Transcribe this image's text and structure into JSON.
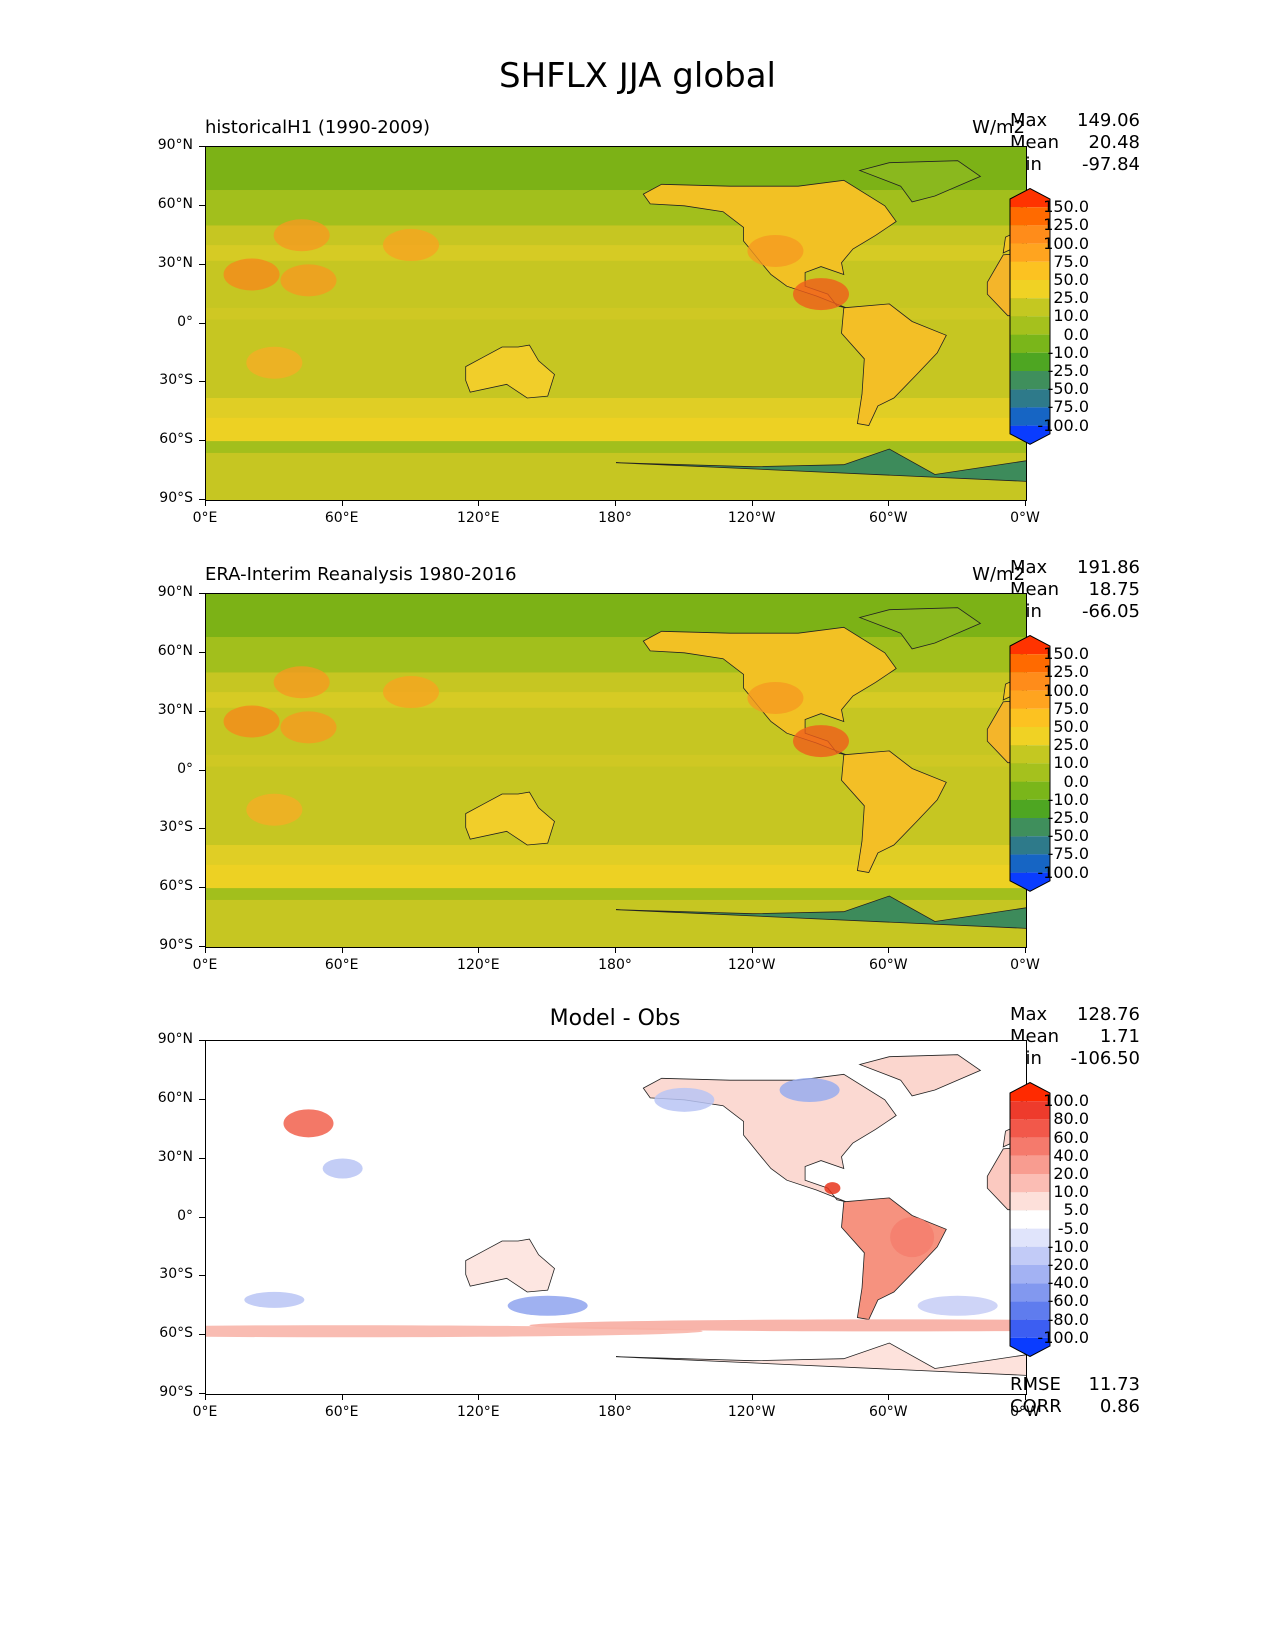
{
  "main_title": "SHFLX JJA global",
  "chart_data": [
    {
      "type": "heatmap",
      "id": "model",
      "title": "historicalH1 (1990-2009)",
      "units": "W/m2",
      "stats": {
        "max": "149.06",
        "mean": "20.48",
        "min": "-97.84"
      },
      "x_ticks": [
        "0°E",
        "60°E",
        "120°E",
        "180°",
        "120°W",
        "60°W",
        "0°W"
      ],
      "y_ticks": [
        "90°N",
        "60°N",
        "30°N",
        "0°",
        "30°S",
        "60°S",
        "90°S"
      ],
      "colorbar": {
        "levels": [
          "150.0",
          "125.0",
          "100.0",
          "75.0",
          "50.0",
          "25.0",
          "10.0",
          "0.0",
          "-10.0",
          "-25.0",
          "-50.0",
          "-75.0",
          "-100.0"
        ],
        "colors": [
          "#ff3300",
          "#ff6a00",
          "#ff8c1a",
          "#ffa41f",
          "#fcc221",
          "#f0d224",
          "#c4c821",
          "#a5c11d",
          "#7ab61a",
          "#4ea622",
          "#3f8f5c",
          "#2e7a8a",
          "#1665c4",
          "#0a3cff"
        ]
      }
    },
    {
      "type": "heatmap",
      "id": "obs",
      "title": "ERA-Interim Reanalysis 1980-2016",
      "units": "W/m2",
      "stats": {
        "max": "191.86",
        "mean": "18.75",
        "min": "-66.05"
      },
      "x_ticks": [
        "0°E",
        "60°E",
        "120°E",
        "180°",
        "120°W",
        "60°W",
        "0°W"
      ],
      "y_ticks": [
        "90°N",
        "60°N",
        "30°N",
        "0°",
        "30°S",
        "60°S",
        "90°S"
      ],
      "colorbar": {
        "levels": [
          "150.0",
          "125.0",
          "100.0",
          "75.0",
          "50.0",
          "25.0",
          "10.0",
          "0.0",
          "-10.0",
          "-25.0",
          "-50.0",
          "-75.0",
          "-100.0"
        ],
        "colors": [
          "#ff3300",
          "#ff6a00",
          "#ff8c1a",
          "#ffa41f",
          "#fcc221",
          "#f0d224",
          "#c4c821",
          "#a5c11d",
          "#7ab61a",
          "#4ea622",
          "#3f8f5c",
          "#2e7a8a",
          "#1665c4",
          "#0a3cff"
        ]
      }
    },
    {
      "type": "heatmap",
      "id": "diff",
      "title": "Model - Obs",
      "units": "",
      "stats": {
        "max": "128.76",
        "mean": "1.71",
        "min": "-106.50",
        "rmse": "11.73",
        "corr": "0.86"
      },
      "x_ticks": [
        "0°E",
        "60°E",
        "120°E",
        "180°",
        "120°W",
        "60°W",
        "0°W"
      ],
      "y_ticks": [
        "90°N",
        "60°N",
        "30°N",
        "0°",
        "30°S",
        "60°S",
        "90°S"
      ],
      "colorbar": {
        "levels": [
          "100.0",
          "80.0",
          "60.0",
          "40.0",
          "20.0",
          "10.0",
          "5.0",
          "-5.0",
          "-10.0",
          "-20.0",
          "-40.0",
          "-60.0",
          "-80.0",
          "-100.0"
        ],
        "colors": [
          "#ff2a00",
          "#ee3b2c",
          "#f2584a",
          "#f57a6c",
          "#f89c90",
          "#fbbdb4",
          "#fde0da",
          "#ffffff",
          "#e0e4fb",
          "#c2cbf7",
          "#a3b2f3",
          "#8298ef",
          "#5f7cee",
          "#3c5ef2",
          "#0a3cff"
        ]
      }
    }
  ],
  "stat_labels": {
    "max": "Max",
    "mean": "Mean",
    "min": "Min",
    "rmse": "RMSE",
    "corr": "CORR"
  }
}
